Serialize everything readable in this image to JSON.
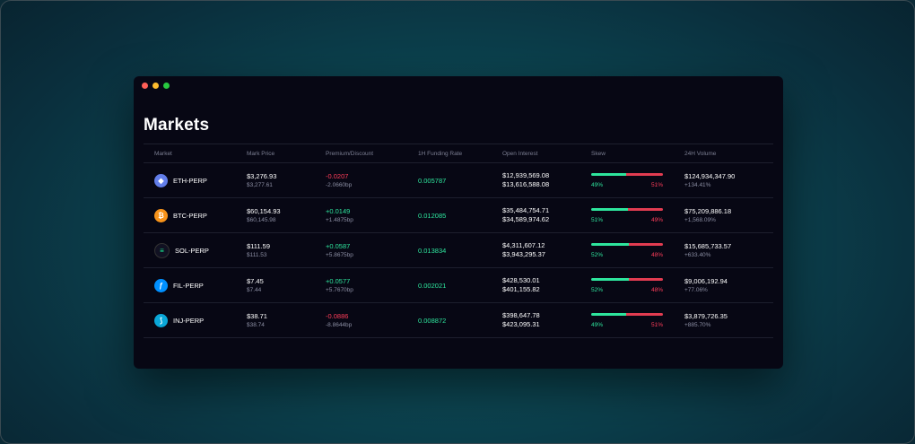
{
  "page": {
    "title": "Markets"
  },
  "table": {
    "headers": [
      "Market",
      "Mark Price",
      "Premium/Discount",
      "1H Funding Rate",
      "Open Interest",
      "Skew",
      "24H Volume"
    ],
    "rows": [
      {
        "market": "ETH-PERP",
        "icon": "ethereum-icon",
        "icon_glyph": "◆",
        "icon_color": "#627eea",
        "mark_price": "$3,276.93",
        "mark_sub": "$3,277.61",
        "premium": "-0.0207",
        "premium_sub": "-2.0660bp",
        "premium_sign": "neg",
        "funding": "0.005787",
        "oi_long": "$12,939,569.08",
        "oi_short": "$13,616,588.08",
        "skew_long": 49,
        "skew_short": 51,
        "skew_long_label": "49%",
        "skew_short_label": "51%",
        "volume": "$124,934,347.90",
        "volume_change": "+134.41%"
      },
      {
        "market": "BTC-PERP",
        "icon": "bitcoin-icon",
        "icon_glyph": "₿",
        "icon_color": "#f7931a",
        "mark_price": "$60,154.93",
        "mark_sub": "$60,145.98",
        "premium": "+0.0149",
        "premium_sub": "+1.4875bp",
        "premium_sign": "pos",
        "funding": "0.012085",
        "oi_long": "$35,484,754.71",
        "oi_short": "$34,589,974.62",
        "skew_long": 51,
        "skew_short": 49,
        "skew_long_label": "51%",
        "skew_short_label": "49%",
        "volume": "$75,209,886.18",
        "volume_change": "+1,568.09%"
      },
      {
        "market": "SOL-PERP",
        "icon": "solana-icon",
        "icon_glyph": "≡",
        "icon_color": "#111122",
        "mark_price": "$111.59",
        "mark_sub": "$111.53",
        "premium": "+0.0587",
        "premium_sub": "+5.8675bp",
        "premium_sign": "pos",
        "funding": "0.013834",
        "oi_long": "$4,311,607.12",
        "oi_short": "$3,943,295.37",
        "skew_long": 52,
        "skew_short": 48,
        "skew_long_label": "52%",
        "skew_short_label": "48%",
        "volume": "$15,685,733.57",
        "volume_change": "+633.40%"
      },
      {
        "market": "FIL-PERP",
        "icon": "filecoin-icon",
        "icon_glyph": "ƒ",
        "icon_color": "#0090ff",
        "mark_price": "$7.45",
        "mark_sub": "$7.44",
        "premium": "+0.0577",
        "premium_sub": "+5.7670bp",
        "premium_sign": "pos",
        "funding": "0.002021",
        "oi_long": "$428,530.01",
        "oi_short": "$401,155.82",
        "skew_long": 52,
        "skew_short": 48,
        "skew_long_label": "52%",
        "skew_short_label": "48%",
        "volume": "$9,006,192.94",
        "volume_change": "+77.06%"
      },
      {
        "market": "INJ-PERP",
        "icon": "injective-icon",
        "icon_glyph": "⟆",
        "icon_color": "#0aa7d8",
        "mark_price": "$38.71",
        "mark_sub": "$38.74",
        "premium": "-0.0886",
        "premium_sub": "-8.8644bp",
        "premium_sign": "neg",
        "funding": "0.008872",
        "oi_long": "$398,647.78",
        "oi_short": "$423,095.31",
        "skew_long": 49,
        "skew_short": 51,
        "skew_long_label": "49%",
        "skew_short_label": "51%",
        "volume": "$3,879,726.35",
        "volume_change": "+885.70%"
      }
    ]
  }
}
